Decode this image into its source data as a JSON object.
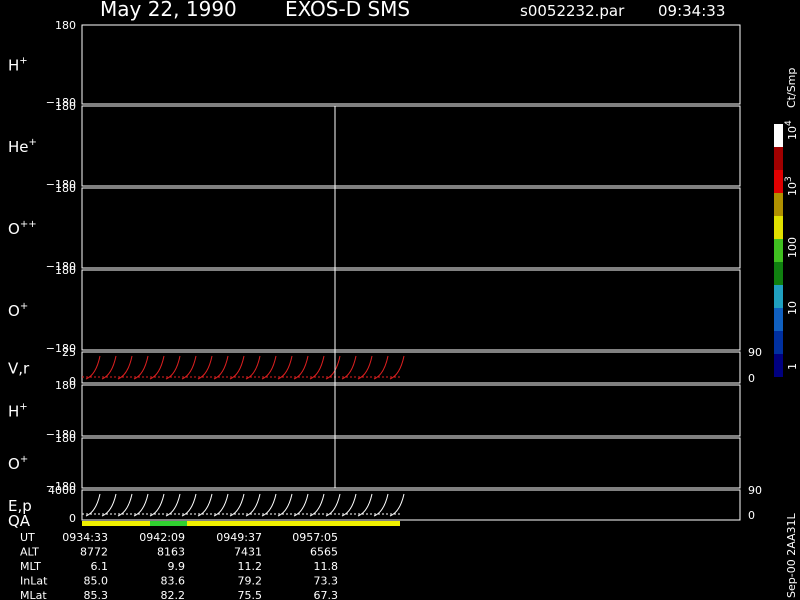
{
  "header": {
    "date": "May 22, 1990",
    "mission": "EXOS-D SMS",
    "file": "s0052232.par",
    "time": "09:34:33"
  },
  "panels": [
    {
      "label": "H",
      "sup": "+",
      "top": "180",
      "bottom": "−180"
    },
    {
      "label": "He",
      "sup": "+",
      "top": "180",
      "bottom": "−180"
    },
    {
      "label": "O",
      "sup": "++",
      "top": "180",
      "bottom": "−180"
    },
    {
      "label": "O",
      "sup": "+",
      "top": "180",
      "bottom": "−180"
    },
    {
      "label": "V,r",
      "top": "25",
      "bottom": "0",
      "right_top": "90",
      "right_bottom": "0"
    },
    {
      "label": "H",
      "sup": "+",
      "top": "180",
      "bottom": "−180"
    },
    {
      "label": "O",
      "sup": "+",
      "top": "180",
      "bottom": "−180"
    },
    {
      "label": "E,p",
      "top": "4000",
      "bottom": "0",
      "right_top": "90",
      "right_bottom": "0"
    }
  ],
  "qa_label": "QA",
  "colorbar": {
    "unit": "Ct/Smp",
    "ticks": [
      {
        "text": "1"
      },
      {
        "text": "10"
      },
      {
        "text": "100"
      },
      {
        "text": "10",
        "sup": "3"
      },
      {
        "text": "10",
        "sup": "4"
      }
    ]
  },
  "table": {
    "rows": [
      {
        "label": "UT",
        "values": [
          "0934:33",
          "0942:09",
          "0949:37",
          "0957:05"
        ]
      },
      {
        "label": "ALT",
        "values": [
          "8772",
          "8163",
          "7431",
          "6565"
        ]
      },
      {
        "label": "MLT",
        "values": [
          "6.1",
          "9.9",
          "11.2",
          "11.8"
        ]
      },
      {
        "label": "InLat",
        "values": [
          "85.0",
          "83.6",
          "79.2",
          "73.3"
        ]
      },
      {
        "label": "MLat",
        "values": [
          "85.3",
          "82.2",
          "75.5",
          "67.3"
        ]
      }
    ]
  },
  "footer": "Sep-00 2AA31L"
}
